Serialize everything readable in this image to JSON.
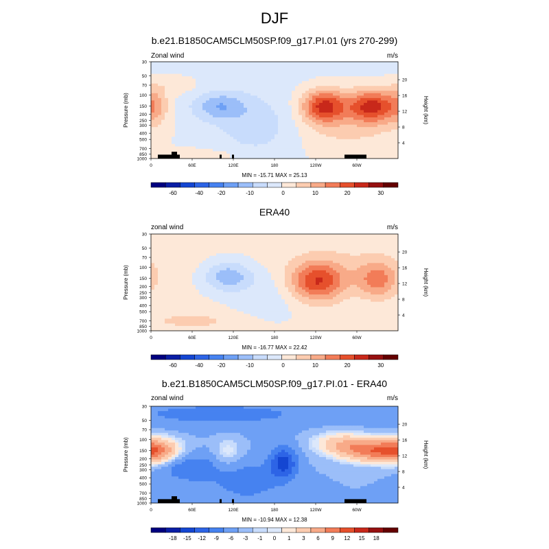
{
  "page": {
    "title": "DJF"
  },
  "chart_data": [
    {
      "type": "heatmap",
      "title": "b.e21.B1850CAM5CLM50SP.f09_g17.PI.01 (yrs 270-299)",
      "left_label": "Zonal wind",
      "units": "m/s",
      "ylabel": "Pressure (mb)",
      "y2label": "Height (km)",
      "pressure_ticks": [
        "30",
        "50",
        "70",
        "100",
        "150",
        "200",
        "250",
        "300",
        "400",
        "500",
        "700",
        "850",
        "1000"
      ],
      "height_ticks": [
        "20",
        "16",
        "12",
        "8",
        "4"
      ],
      "x_ticks": [
        "0",
        "60E",
        "120E",
        "180",
        "120W",
        "60W"
      ],
      "stats": "MIN = -15.71  MAX =  25.13",
      "colorbar": {
        "labels": [
          "-60",
          "-40",
          "-20",
          "-10",
          "0",
          "10",
          "20",
          "30"
        ],
        "levels": [
          -70,
          -60,
          -50,
          -40,
          -30,
          -20,
          -15,
          -10,
          -5,
          0,
          5,
          10,
          15,
          20,
          25,
          30,
          35
        ]
      },
      "features": [
        {
          "lon": 5,
          "p": 150,
          "value": 10,
          "sx": 14,
          "sy": 0.45
        },
        {
          "lon": 252,
          "p": 150,
          "value": 25,
          "sx": 22,
          "sy": 0.42
        },
        {
          "lon": 322,
          "p": 150,
          "value": 25,
          "sx": 24,
          "sy": 0.42
        },
        {
          "lon": 280,
          "p": 300,
          "value": 8,
          "sx": 70,
          "sy": 0.9
        },
        {
          "lon": 100,
          "p": 150,
          "value": -12,
          "sx": 28,
          "sy": 0.35
        },
        {
          "lon": 165,
          "p": 300,
          "value": -7,
          "sx": 45,
          "sy": 0.75
        },
        {
          "lon": 60,
          "p": 900,
          "value": 6,
          "sx": 50,
          "sy": 0.18
        },
        {
          "lon": 30,
          "p": 70,
          "value": 4,
          "sx": 35,
          "sy": 0.3
        }
      ],
      "base": -2
    },
    {
      "type": "heatmap",
      "title": "ERA40",
      "left_label": "zonal wind",
      "units": "m/s",
      "ylabel": "Pressure (mb)",
      "y2label": "Height (km)",
      "pressure_ticks": [
        "30",
        "50",
        "70",
        "100",
        "150",
        "200",
        "250",
        "300",
        "400",
        "500",
        "700",
        "850",
        "1000"
      ],
      "height_ticks": [
        "20",
        "16",
        "12",
        "8",
        "4"
      ],
      "x_ticks": [
        "0",
        "60E",
        "120E",
        "180",
        "120W",
        "60W"
      ],
      "stats": "MIN = -16.77  MAX =  22.42",
      "colorbar": {
        "labels": [
          "-60",
          "-40",
          "-20",
          "-10",
          "0",
          "10",
          "20",
          "30"
        ],
        "levels": [
          -70,
          -60,
          -50,
          -40,
          -30,
          -20,
          -15,
          -10,
          -5,
          0,
          5,
          10,
          15,
          20,
          25,
          30,
          35
        ]
      },
      "features": [
        {
          "lon": 242,
          "p": 170,
          "value": 23,
          "sx": 28,
          "sy": 0.5
        },
        {
          "lon": 330,
          "p": 160,
          "value": 15,
          "sx": 20,
          "sy": 0.45
        },
        {
          "lon": 112,
          "p": 140,
          "value": -14,
          "sx": 25,
          "sy": 0.38
        },
        {
          "lon": 175,
          "p": 250,
          "value": -4,
          "sx": 40,
          "sy": 0.7
        },
        {
          "lon": 60,
          "p": 700,
          "value": 6,
          "sx": 45,
          "sy": 0.2
        },
        {
          "lon": 290,
          "p": 100,
          "value": 4,
          "sx": 80,
          "sy": 0.6
        }
      ],
      "base": 1
    },
    {
      "type": "heatmap",
      "title": "b.e21.B1850CAM5CLM50SP.f09_g17.PI.01 - ERA40",
      "left_label": "zonal wind",
      "units": "m/s",
      "ylabel": "Pressure (mb)",
      "y2label": "Height (km)",
      "pressure_ticks": [
        "30",
        "50",
        "70",
        "100",
        "150",
        "200",
        "250",
        "300",
        "400",
        "500",
        "700",
        "850",
        "1000"
      ],
      "height_ticks": [
        "20",
        "16",
        "12",
        "8",
        "4"
      ],
      "x_ticks": [
        "0",
        "60E",
        "120E",
        "180",
        "120W",
        "60W"
      ],
      "stats": "MIN = -10.94  MAX =  12.38",
      "colorbar": {
        "labels": [
          "-18",
          "-15",
          "-12",
          "-9",
          "-6",
          "-3",
          "-1",
          "0",
          "1",
          "3",
          "6",
          "9",
          "12",
          "15",
          "18"
        ],
        "levels": [
          -20,
          -18,
          -15,
          -12,
          -9,
          -6,
          -3,
          -1,
          0,
          1,
          3,
          6,
          9,
          12,
          15,
          18,
          20
        ]
      },
      "features": [
        {
          "lon": 8,
          "p": 150,
          "value": 11,
          "sx": 25,
          "sy": 0.35
        },
        {
          "lon": 320,
          "p": 150,
          "value": 12,
          "sx": 35,
          "sy": 0.3
        },
        {
          "lon": 275,
          "p": 110,
          "value": 6,
          "sx": 30,
          "sy": 0.3
        },
        {
          "lon": 112,
          "p": 160,
          "value": 4,
          "sx": 14,
          "sy": 0.4
        },
        {
          "lon": 193,
          "p": 230,
          "value": -10,
          "sx": 14,
          "sy": 0.42
        },
        {
          "lon": 55,
          "p": 280,
          "value": -6,
          "sx": 30,
          "sy": 0.35
        },
        {
          "lon": 140,
          "p": 450,
          "value": -5,
          "sx": 35,
          "sy": 0.5
        },
        {
          "lon": 100,
          "p": 40,
          "value": -4,
          "sx": 120,
          "sy": 0.35
        }
      ],
      "base": -3
    }
  ],
  "colors": {
    "ramp": [
      "#00007f",
      "#0a1ea5",
      "#1446d2",
      "#2d64e6",
      "#4682f0",
      "#6ea0f5",
      "#9bbef9",
      "#c8dcfc",
      "#dce8fb",
      "#fde8d8",
      "#fcccb0",
      "#f8aa88",
      "#f27c58",
      "#e6502c",
      "#c8281a",
      "#961010",
      "#640000"
    ]
  }
}
